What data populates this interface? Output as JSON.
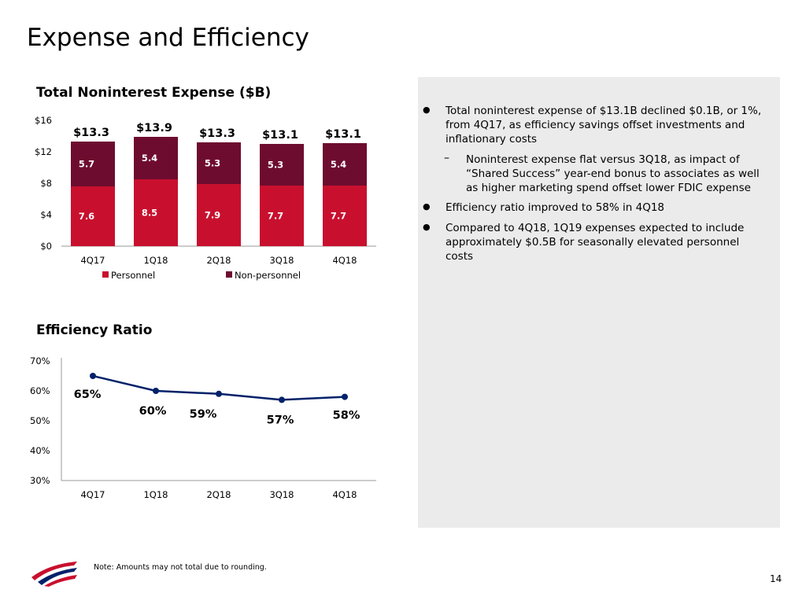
{
  "slide": {
    "title": "Expense and Efficiency",
    "page_number": "14"
  },
  "footnote": "Note: Amounts may not total due to rounding.",
  "bullets": [
    "Total noninterest expense of $13.1B declined $0.1B, or 1%, from 4Q17, as efficiency savings offset investments and inflationary costs",
    "Noninterest expense flat versus 3Q18, as impact of “Shared Success” year-end bonus to associates as well as higher marketing spend offset lower FDIC expense",
    "Efficiency ratio improved to 58% in 4Q18",
    "Compared to 4Q18, 1Q19 expenses expected to include approximately $0.5B for seasonally elevated personnel costs"
  ],
  "colors": {
    "personnel": "#c8102e",
    "non_personnel": "#6e0c2f",
    "line": "#012169",
    "panel": "#ebebeb"
  },
  "logo": {
    "icon": "bank-flag-logo-icon"
  },
  "chart_data": [
    {
      "type": "bar",
      "stacked": true,
      "title": "Total Noninterest Expense ($B)",
      "categories": [
        "4Q17",
        "1Q18",
        "2Q18",
        "3Q18",
        "4Q18"
      ],
      "series": [
        {
          "name": "Personnel",
          "values": [
            7.6,
            8.5,
            7.9,
            7.7,
            7.7
          ],
          "labels": [
            "7.6",
            "8.5",
            "7.9",
            "7.7",
            "7.7"
          ]
        },
        {
          "name": "Non-personnel",
          "values": [
            5.7,
            5.4,
            5.3,
            5.3,
            5.4
          ],
          "labels": [
            "5.7",
            "5.4",
            "5.3",
            "5.3",
            "5.4"
          ]
        }
      ],
      "totals": [
        "$13.3",
        "$13.9",
        "$13.3",
        "$13.1",
        "$13.1"
      ],
      "yticks": [
        "$0",
        "$4",
        "$8",
        "$12",
        "$16"
      ],
      "ylim": [
        0,
        16
      ],
      "legend": "bottom",
      "grid": false
    },
    {
      "type": "line",
      "title": "Efficiency Ratio",
      "categories": [
        "4Q17",
        "1Q18",
        "2Q18",
        "3Q18",
        "4Q18"
      ],
      "values": [
        65,
        60,
        59,
        57,
        58
      ],
      "labels": [
        "65%",
        "60%",
        "59%",
        "57%",
        "58%"
      ],
      "yticks": [
        "30%",
        "40%",
        "50%",
        "60%",
        "70%"
      ],
      "ylim": [
        30,
        70
      ],
      "grid": false
    }
  ]
}
